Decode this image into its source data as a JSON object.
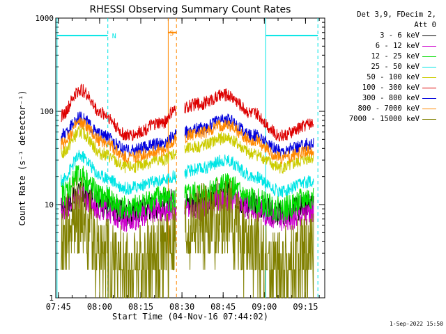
{
  "chart_data": {
    "type": "line",
    "title": "RHESSI Observing Summary Count Rates",
    "xlabel": "Start Time (04-Nov-16 07:44:02)",
    "ylabel": "Count Rate (s⁻¹ detector⁻¹)",
    "y_scale": "log",
    "ylim": [
      1,
      1000
    ],
    "y_ticks": [
      "1",
      "10",
      "100",
      "1000"
    ],
    "x_ticks": [
      "07:45",
      "08:00",
      "08:15",
      "08:30",
      "08:45",
      "09:00",
      "09:15"
    ],
    "x_range": [
      "07:44:02",
      "09:22:00"
    ],
    "grid": false,
    "legend_position": "right",
    "legend_header": [
      "Det 3,9, FDecim 2,",
      "Att 0"
    ],
    "series": [
      {
        "name": "3 - 6 keV",
        "color": "#000000",
        "x": [
          "07:46",
          "07:53",
          "08:01",
          "08:10",
          "08:23",
          "08:27",
          "08:36",
          "08:46",
          "08:56",
          "09:06",
          "09:18"
        ],
        "values": [
          9,
          13,
          10,
          8,
          10,
          11,
          10,
          13,
          10,
          8,
          10
        ]
      },
      {
        "name": "6 - 12 keV",
        "color": "#cc00cc",
        "x": [
          "07:46",
          "07:53",
          "08:01",
          "08:10",
          "08:23",
          "08:27",
          "08:36",
          "08:46",
          "08:56",
          "09:06",
          "09:18"
        ],
        "values": [
          9,
          12,
          9,
          7,
          9,
          9,
          9,
          11,
          9,
          7,
          8
        ]
      },
      {
        "name": "12 - 25 keV",
        "color": "#00dd00",
        "x": [
          "07:46",
          "07:53",
          "08:01",
          "08:10",
          "08:23",
          "08:27",
          "08:36",
          "08:46",
          "08:56",
          "09:06",
          "09:18"
        ],
        "values": [
          13,
          20,
          12,
          9,
          12,
          11,
          13,
          16,
          11,
          9,
          12
        ]
      },
      {
        "name": "25 - 50 keV",
        "color": "#00e5e5",
        "x": [
          "07:46",
          "07:53",
          "08:01",
          "08:10",
          "08:23",
          "08:27",
          "08:36",
          "08:46",
          "08:56",
          "09:06",
          "09:18"
        ],
        "values": [
          18,
          33,
          20,
          15,
          18,
          20,
          24,
          30,
          20,
          14,
          18
        ]
      },
      {
        "name": "50 - 100 keV",
        "color": "#cccc00",
        "x": [
          "07:46",
          "07:53",
          "08:01",
          "08:10",
          "08:23",
          "08:27",
          "08:36",
          "08:46",
          "08:56",
          "09:06",
          "09:18"
        ],
        "values": [
          35,
          60,
          35,
          25,
          30,
          35,
          42,
          52,
          35,
          25,
          32
        ]
      },
      {
        "name": "100 - 300 keV",
        "color": "#dd0000",
        "x": [
          "07:46",
          "07:53",
          "08:01",
          "08:10",
          "08:23",
          "08:27",
          "08:36",
          "08:46",
          "08:56",
          "09:06",
          "09:18"
        ],
        "values": [
          90,
          170,
          95,
          55,
          75,
          100,
          120,
          150,
          95,
          55,
          75
        ]
      },
      {
        "name": "300 - 800 keV",
        "color": "#0000dd",
        "x": [
          "07:46",
          "07:53",
          "08:01",
          "08:10",
          "08:23",
          "08:27",
          "08:36",
          "08:46",
          "08:56",
          "09:06",
          "09:18"
        ],
        "values": [
          55,
          85,
          55,
          38,
          45,
          55,
          65,
          82,
          55,
          38,
          45
        ]
      },
      {
        "name": "800 - 7000 keV",
        "color": "#ff8800",
        "x": [
          "07:46",
          "07:53",
          "08:01",
          "08:10",
          "08:23",
          "08:27",
          "08:36",
          "08:46",
          "08:56",
          "09:06",
          "09:18"
        ],
        "values": [
          45,
          75,
          48,
          32,
          38,
          48,
          58,
          72,
          48,
          32,
          38
        ]
      },
      {
        "name": "7000 - 15000 keV",
        "color": "#808000",
        "x": [
          "07:46",
          "07:53",
          "08:01",
          "08:10",
          "08:23",
          "08:27",
          "08:36",
          "08:46",
          "08:56",
          "09:06",
          "09:18"
        ],
        "values": [
          4,
          8,
          3,
          2,
          3,
          4,
          6,
          7,
          3,
          2,
          3
        ]
      }
    ],
    "markers": [
      {
        "label": "N",
        "color": "#00e5e5",
        "bar_level": 650,
        "start": "07:44:30",
        "end": "08:03:00"
      },
      {
        "label": "",
        "color": "#00e5e5",
        "bar_level": 650,
        "start": "09:00:30",
        "end": "09:19:30"
      },
      {
        "label": "S",
        "color": "#ff8800",
        "bar_level": 700,
        "start": "08:25:00",
        "end": "08:28:00"
      }
    ],
    "gaps": [
      {
        "start": "08:28:00",
        "end": "08:31:00"
      }
    ]
  },
  "footer_stamp": "1-Sep-2022 15:50"
}
